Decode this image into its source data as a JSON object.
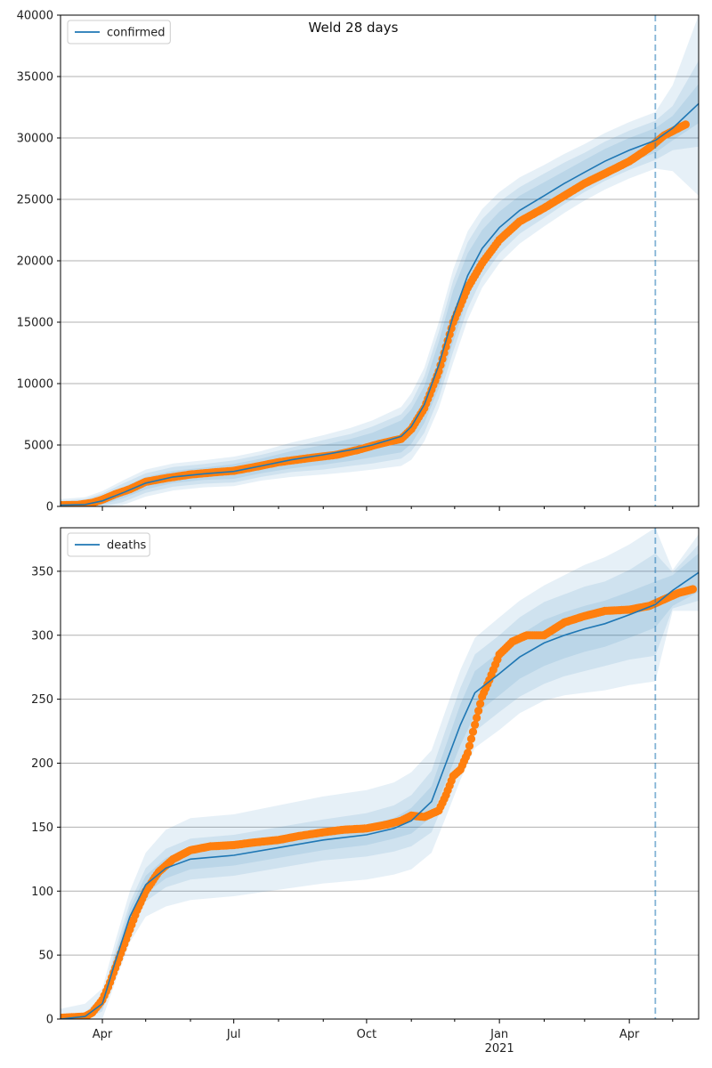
{
  "figure": {
    "title": "Weld 28 days"
  },
  "chart_data": [
    {
      "type": "line",
      "legend_label": "confirmed",
      "legend_position": "top-left",
      "grid": "y",
      "x_axis": {
        "start": "2020-03-03",
        "end": "2021-05-19",
        "tick_labels": [
          {
            "date": "2020-04-01",
            "label": "Apr"
          },
          {
            "date": "2020-07-01",
            "label": "Jul"
          },
          {
            "date": "2020-10-01",
            "label": "Oct"
          },
          {
            "date": "2021-01-01",
            "label": "Jan",
            "sub": "2021"
          },
          {
            "date": "2021-04-01",
            "label": "Apr"
          }
        ],
        "show_labels": false
      },
      "y_axis": {
        "min": 0,
        "max": 40000,
        "ticks": [
          0,
          5000,
          10000,
          15000,
          20000,
          25000,
          30000,
          35000,
          40000
        ]
      },
      "forecast_start": "2021-04-19",
      "model": {
        "dates": [
          "2020-03-03",
          "2020-03-20",
          "2020-04-01",
          "2020-04-15",
          "2020-05-01",
          "2020-05-20",
          "2020-06-10",
          "2020-07-01",
          "2020-07-20",
          "2020-08-10",
          "2020-09-01",
          "2020-09-20",
          "2020-10-05",
          "2020-10-25",
          "2020-11-01",
          "2020-11-10",
          "2020-11-20",
          "2020-11-30",
          "2020-12-10",
          "2020-12-20",
          "2021-01-01",
          "2021-01-15",
          "2021-02-01",
          "2021-02-15",
          "2021-03-01",
          "2021-03-15",
          "2021-04-01",
          "2021-04-19",
          "2021-05-01",
          "2021-05-19"
        ],
        "values": [
          100,
          150,
          450,
          1100,
          1900,
          2400,
          2650,
          2850,
          3300,
          3800,
          4200,
          4600,
          5000,
          5700,
          6500,
          8300,
          11500,
          15500,
          18800,
          21000,
          22700,
          24100,
          25300,
          26300,
          27200,
          28100,
          29000,
          29800,
          30800,
          32800
        ],
        "band_inner": [
          200,
          250,
          300,
          450,
          500,
          500,
          500,
          600,
          600,
          700,
          800,
          900,
          1000,
          1300,
          1400,
          1500,
          1900,
          2100,
          1800,
          1500,
          1300,
          1200,
          1100,
          1000,
          1000,
          1000,
          1000,
          1000,
          1000,
          1600
        ],
        "band_mid": [
          350,
          450,
          600,
          750,
          800,
          800,
          800,
          900,
          900,
          1000,
          1200,
          1300,
          1500,
          1800,
          2000,
          2300,
          2700,
          2900,
          2700,
          2400,
          2100,
          1900,
          1800,
          1700,
          1600,
          1600,
          1600,
          1600,
          1800,
          3500
        ],
        "band_outer": [
          500,
          600,
          800,
          1000,
          1100,
          1100,
          1100,
          1200,
          1200,
          1400,
          1600,
          1800,
          2000,
          2400,
          2700,
          3000,
          3500,
          3800,
          3600,
          3200,
          2900,
          2700,
          2500,
          2400,
          2300,
          2300,
          2300,
          2300,
          3500,
          7500
        ]
      },
      "observed": {
        "dates": [
          "2020-03-03",
          "2020-03-15",
          "2020-03-25",
          "2020-04-01",
          "2020-04-10",
          "2020-04-20",
          "2020-05-01",
          "2020-05-15",
          "2020-06-01",
          "2020-06-20",
          "2020-07-01",
          "2020-07-15",
          "2020-08-01",
          "2020-08-20",
          "2020-09-10",
          "2020-09-25",
          "2020-10-10",
          "2020-10-25",
          "2020-11-01",
          "2020-11-10",
          "2020-11-20",
          "2020-11-30",
          "2020-12-10",
          "2020-12-20",
          "2021-01-01",
          "2021-01-15",
          "2021-02-01",
          "2021-02-15",
          "2021-03-01",
          "2021-03-15",
          "2021-04-01",
          "2021-04-15",
          "2021-04-25",
          "2021-05-10"
        ],
        "values": [
          100,
          120,
          300,
          550,
          1000,
          1400,
          2000,
          2300,
          2600,
          2800,
          2900,
          3200,
          3600,
          3900,
          4200,
          4600,
          5100,
          5500,
          6300,
          8000,
          11000,
          15000,
          17800,
          19800,
          21700,
          23200,
          24300,
          25300,
          26300,
          27100,
          28100,
          29200,
          30200,
          31100
        ]
      }
    },
    {
      "type": "line",
      "legend_label": "deaths",
      "legend_position": "top-left",
      "grid": "y",
      "x_axis": {
        "start": "2020-03-03",
        "end": "2021-05-19",
        "tick_labels": [
          {
            "date": "2020-04-01",
            "label": "Apr"
          },
          {
            "date": "2020-07-01",
            "label": "Jul"
          },
          {
            "date": "2020-10-01",
            "label": "Oct"
          },
          {
            "date": "2021-01-01",
            "label": "Jan",
            "sub": "2021"
          },
          {
            "date": "2021-04-01",
            "label": "Apr"
          }
        ],
        "show_labels": true
      },
      "y_axis": {
        "min": 0,
        "max": 384,
        "ticks": [
          0,
          50,
          100,
          150,
          200,
          250,
          300,
          350
        ]
      },
      "forecast_start": "2021-04-19",
      "model": {
        "dates": [
          "2020-03-03",
          "2020-03-20",
          "2020-04-01",
          "2020-04-10",
          "2020-04-20",
          "2020-05-01",
          "2020-05-15",
          "2020-06-01",
          "2020-07-01",
          "2020-08-01",
          "2020-09-01",
          "2020-10-01",
          "2020-10-20",
          "2020-11-01",
          "2020-11-15",
          "2020-11-25",
          "2020-12-05",
          "2020-12-15",
          "2021-01-01",
          "2021-01-15",
          "2021-02-01",
          "2021-02-15",
          "2021-03-01",
          "2021-03-15",
          "2021-04-01",
          "2021-04-19",
          "2021-05-01",
          "2021-05-19"
        ],
        "values": [
          0,
          2,
          12,
          45,
          80,
          105,
          118,
          125,
          128,
          134,
          140,
          144,
          149,
          155,
          170,
          200,
          230,
          255,
          270,
          283,
          294,
          300,
          305,
          309,
          316,
          324,
          335,
          349
        ],
        "band_inner": [
          1,
          2,
          4,
          5,
          6,
          7,
          8,
          8,
          8,
          8,
          8,
          8,
          8,
          10,
          12,
          14,
          16,
          17,
          17,
          17,
          18,
          18,
          18,
          18,
          18,
          18,
          12,
          15
        ],
        "band_mid": [
          2,
          3,
          6,
          9,
          11,
          13,
          15,
          16,
          16,
          16,
          16,
          17,
          18,
          20,
          24,
          27,
          29,
          30,
          30,
          31,
          32,
          32,
          33,
          33,
          35,
          40,
          14,
          22
        ],
        "band_outer": [
          8,
          10,
          12,
          16,
          20,
          25,
          30,
          32,
          32,
          33,
          34,
          35,
          36,
          38,
          40,
          42,
          43,
          43,
          44,
          44,
          45,
          47,
          50,
          52,
          55,
          60,
          16,
          30
        ]
      },
      "observed": {
        "dates": [
          "2020-03-03",
          "2020-03-20",
          "2020-03-25",
          "2020-04-01",
          "2020-04-05",
          "2020-04-10",
          "2020-04-15",
          "2020-04-20",
          "2020-04-25",
          "2020-05-01",
          "2020-05-10",
          "2020-05-20",
          "2020-06-01",
          "2020-06-15",
          "2020-07-01",
          "2020-07-15",
          "2020-08-01",
          "2020-08-15",
          "2020-09-01",
          "2020-09-15",
          "2020-10-01",
          "2020-10-15",
          "2020-10-25",
          "2020-11-01",
          "2020-11-10",
          "2020-11-20",
          "2020-11-25",
          "2020-11-30",
          "2020-12-05",
          "2020-12-10",
          "2020-12-15",
          "2020-12-20",
          "2020-12-25",
          "2021-01-01",
          "2021-01-10",
          "2021-01-20",
          "2021-02-01",
          "2021-02-15",
          "2021-03-01",
          "2021-03-15",
          "2021-04-01",
          "2021-04-15",
          "2021-04-25",
          "2021-05-05",
          "2021-05-15"
        ],
        "values": [
          1,
          2,
          5,
          15,
          25,
          40,
          55,
          70,
          85,
          100,
          115,
          125,
          132,
          135,
          136,
          138,
          140,
          143,
          146,
          148,
          149,
          152,
          155,
          159,
          158,
          163,
          175,
          190,
          195,
          208,
          230,
          252,
          265,
          285,
          295,
          300,
          300,
          310,
          315,
          319,
          320,
          323,
          328,
          333,
          336
        ]
      }
    }
  ],
  "colors": {
    "model_line": "#1f77b4",
    "observed_points": "#ff7f0e",
    "band": "#1f77b4",
    "grid": "#b0b0b0",
    "forecast_line": "#1f77b4"
  }
}
